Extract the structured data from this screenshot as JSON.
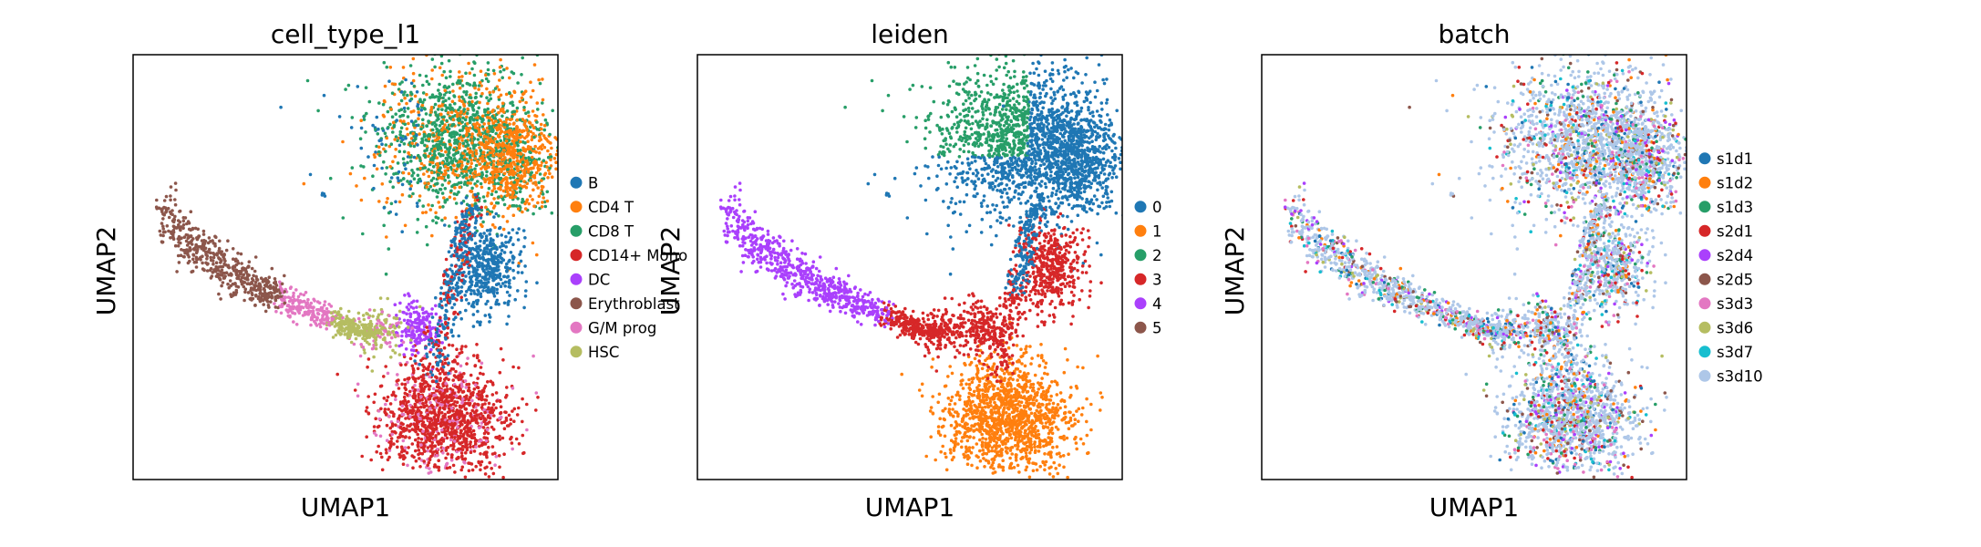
{
  "chart_data": [
    {
      "type": "scatter",
      "title": "cell_type_l1",
      "xlabel": "UMAP1",
      "ylabel": "UMAP2",
      "ticks": "none",
      "grid": false,
      "legend_position": "right",
      "color_by": "cell_type_l1",
      "categories": [
        {
          "name": "B",
          "color": "#1f77b4"
        },
        {
          "name": "CD4 T",
          "color": "#ff7f0e"
        },
        {
          "name": "CD8 T",
          "color": "#279e68"
        },
        {
          "name": "CD14+ Mono",
          "color": "#d62728"
        },
        {
          "name": "DC",
          "color": "#aa40fc"
        },
        {
          "name": "Erythroblast",
          "color": "#8c564b"
        },
        {
          "name": "G/M prog",
          "color": "#e377c2"
        },
        {
          "name": "HSC",
          "color": "#b5bd61"
        }
      ]
    },
    {
      "type": "scatter",
      "title": "leiden",
      "xlabel": "UMAP1",
      "ylabel": "UMAP2",
      "ticks": "none",
      "grid": false,
      "legend_position": "right",
      "color_by": "leiden",
      "categories": [
        {
          "name": "0",
          "color": "#1f77b4"
        },
        {
          "name": "1",
          "color": "#ff7f0e"
        },
        {
          "name": "2",
          "color": "#279e68"
        },
        {
          "name": "3",
          "color": "#d62728"
        },
        {
          "name": "4",
          "color": "#aa40fc"
        },
        {
          "name": "5",
          "color": "#8c564b"
        }
      ]
    },
    {
      "type": "scatter",
      "title": "batch",
      "xlabel": "UMAP1",
      "ylabel": "UMAP2",
      "ticks": "none",
      "grid": false,
      "legend_position": "right",
      "color_by": "batch",
      "categories": [
        {
          "name": "s1d1",
          "color": "#1f77b4"
        },
        {
          "name": "s1d2",
          "color": "#ff7f0e"
        },
        {
          "name": "s1d3",
          "color": "#279e68"
        },
        {
          "name": "s2d1",
          "color": "#d62728"
        },
        {
          "name": "s2d4",
          "color": "#aa40fc"
        },
        {
          "name": "s2d5",
          "color": "#8c564b"
        },
        {
          "name": "s3d3",
          "color": "#e377c2"
        },
        {
          "name": "s3d6",
          "color": "#b5bd61"
        },
        {
          "name": "s3d7",
          "color": "#17becf"
        },
        {
          "name": "s3d10",
          "color": "#aec7e8"
        }
      ]
    }
  ]
}
